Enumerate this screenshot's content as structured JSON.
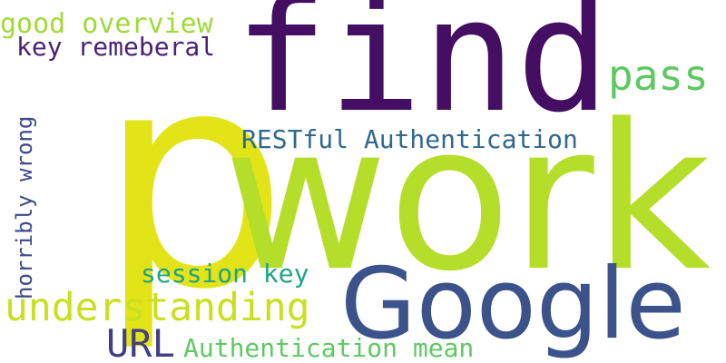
{
  "words": {
    "p": {
      "text": "p",
      "color": "#e2e418"
    },
    "work": {
      "text": "work",
      "color": "#b5de2b"
    },
    "find": {
      "text": "find",
      "color": "#440f62"
    },
    "google": {
      "text": "Google",
      "color": "#3b528b"
    },
    "pass": {
      "text": "pass",
      "color": "#5ec962"
    },
    "restful": {
      "text": "RESTful Authentication",
      "color": "#31688e"
    },
    "good_overview": {
      "text": "good overview",
      "color": "#a0da39"
    },
    "key_remeberal": {
      "text": "key remeberal",
      "color": "#482475"
    },
    "horribly_wrong": {
      "text": "horribly wrong",
      "color": "#3e4989"
    },
    "session_key": {
      "text": "session key",
      "color": "#20a386"
    },
    "understanding": {
      "text": "understanding",
      "color": "#c8e020"
    },
    "url": {
      "text": "URL",
      "color": "#433e85"
    },
    "authentication_mean": {
      "text": "Authentication mean",
      "color": "#5ec962"
    }
  }
}
